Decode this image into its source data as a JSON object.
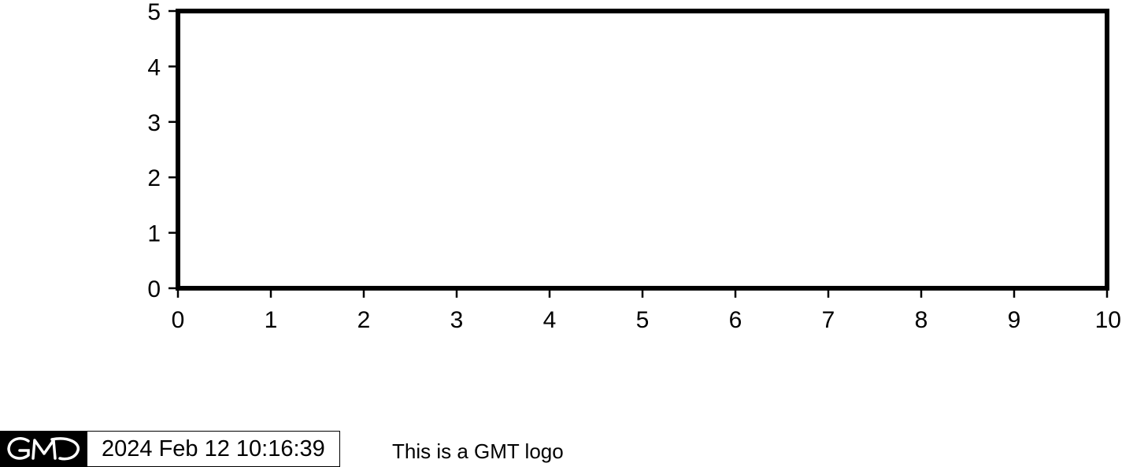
{
  "chart_data": {
    "type": "scatter",
    "title": "",
    "xlabel": "",
    "ylabel": "",
    "xlim": [
      0,
      10
    ],
    "ylim": [
      0,
      5
    ],
    "xticks": [
      0,
      1,
      2,
      3,
      4,
      5,
      6,
      7,
      8,
      9,
      10
    ],
    "yticks": [
      0,
      1,
      2,
      3,
      4,
      5
    ],
    "grid": false,
    "series": []
  },
  "logo": {
    "brand_icon": "gmt-logo-icon",
    "timestamp": "2024 Feb 12 10:16:39",
    "label": "This is a GMT logo"
  }
}
